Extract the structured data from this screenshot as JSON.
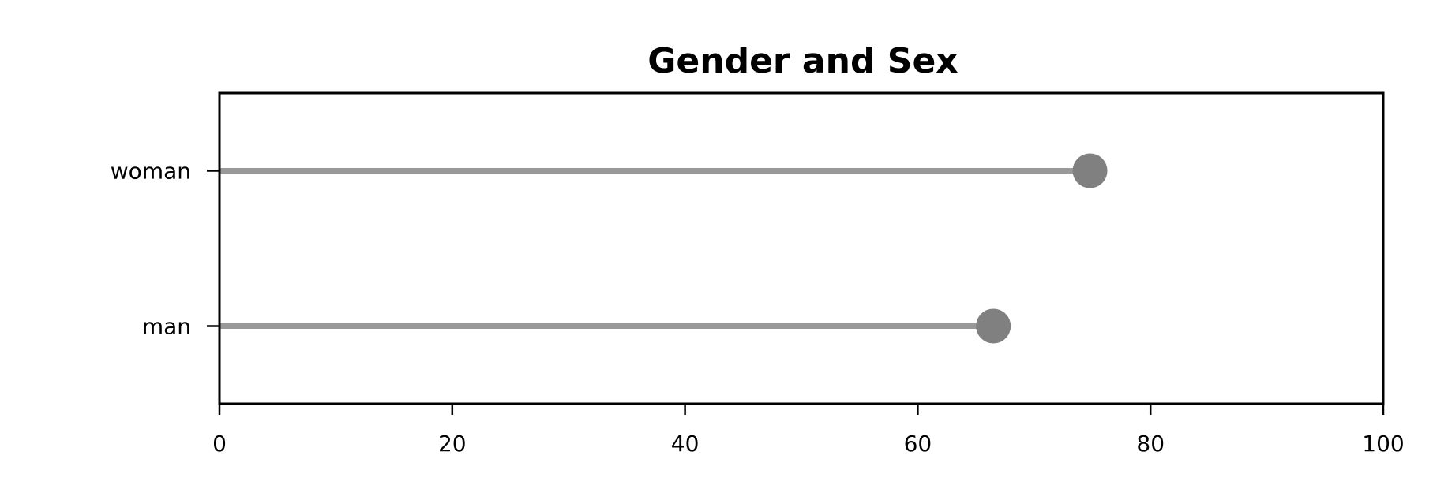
{
  "chart_data": {
    "type": "lollipop",
    "title": "Gender and Sex",
    "xlabel": "",
    "ylabel": "",
    "xlim": [
      0,
      100
    ],
    "x_ticks": [
      "0",
      "20",
      "40",
      "60",
      "80",
      "100"
    ],
    "x_tick_values": [
      0,
      20,
      40,
      60,
      80,
      100
    ],
    "categories": [
      "man",
      "woman"
    ],
    "values": [
      66.5,
      74.8
    ],
    "grid": false,
    "legend": "none",
    "colors": {
      "stem": "#999999",
      "marker": "#808080",
      "frame": "#000000",
      "text": "#000000"
    }
  }
}
